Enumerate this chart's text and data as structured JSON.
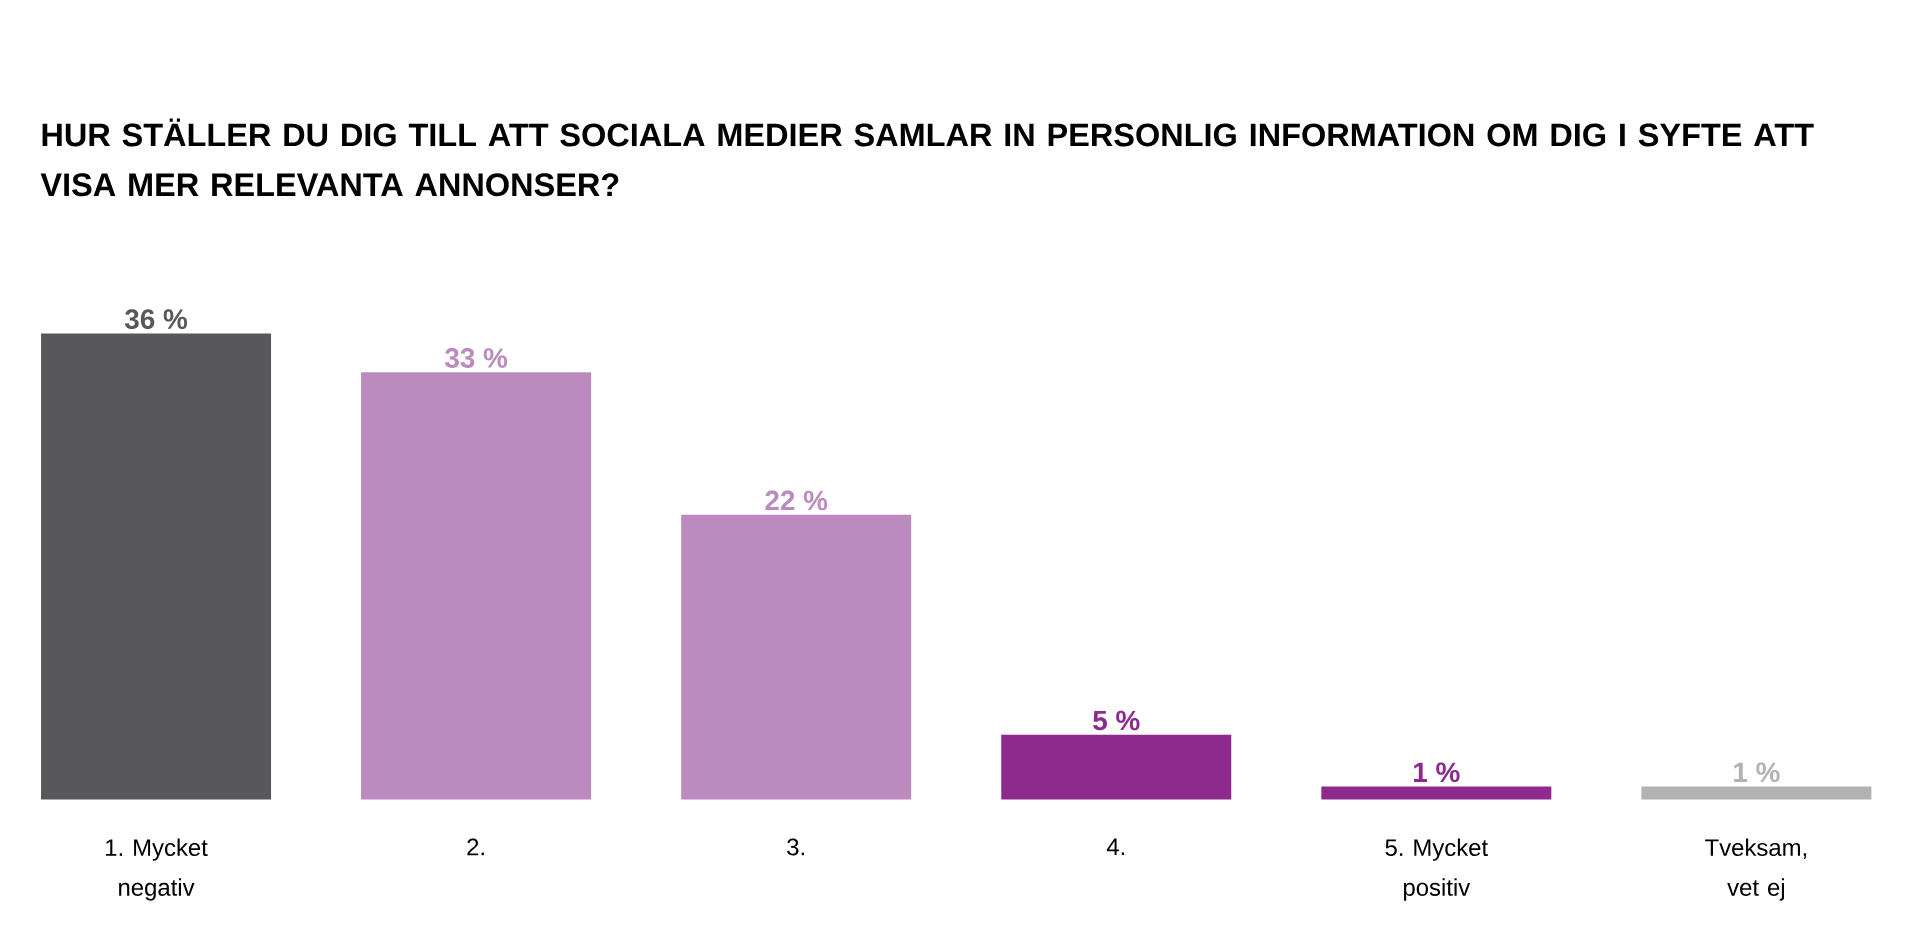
{
  "chart_data": {
    "type": "bar",
    "title": "HUR STÄLLER DU DIG TILL ATT SOCIALA MEDIER SAMLAR IN PERSONLIG INFORMATION OM DIG I SYFTE ATT VISA MER RELEVANTA ANNONSER?",
    "categories": [
      "1. Mycket negativ",
      "2.",
      "3.",
      "4.",
      "5. Mycket positiv",
      "Tveksam, vet ej"
    ],
    "values": [
      36,
      33,
      22,
      5,
      1,
      1
    ],
    "colors": [
      "#58585a",
      "#bb8bbf",
      "#bb8bbf",
      "#8e2a8e",
      "#8e2a8e",
      "#b2b2b2"
    ],
    "value_labels": [
      "36 %",
      "33 %",
      "22 %",
      "5 %",
      "1 %",
      "1 %"
    ]
  }
}
